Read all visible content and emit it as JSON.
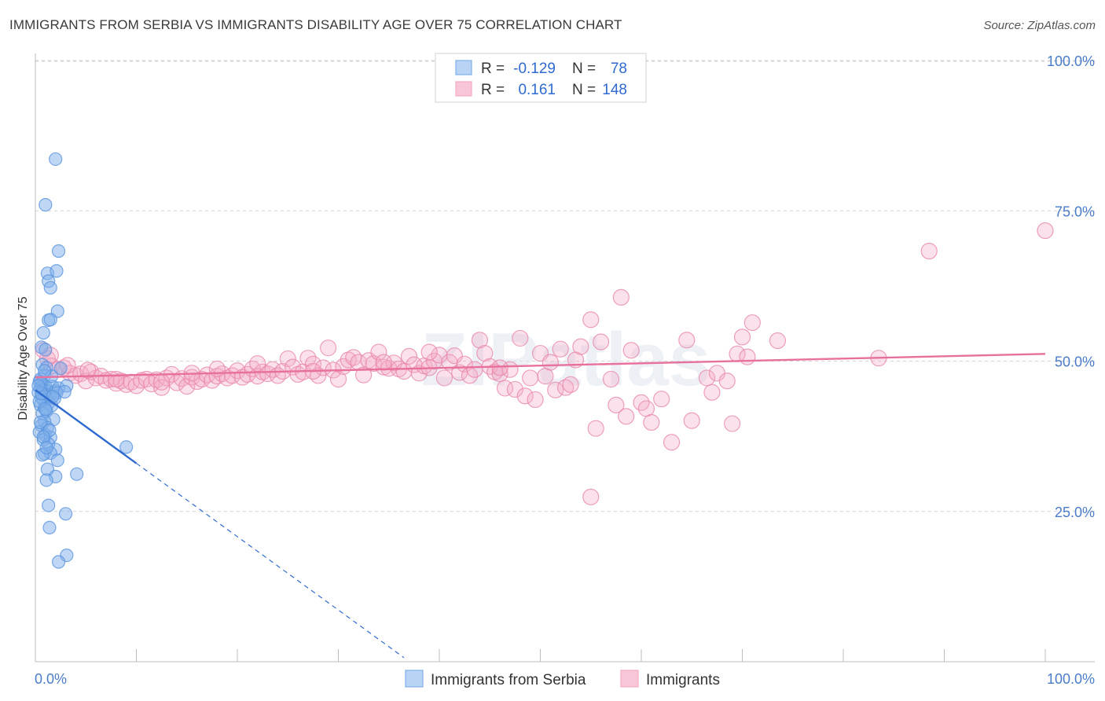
{
  "title": "IMMIGRANTS FROM SERBIA VS IMMIGRANTS DISABILITY AGE OVER 75 CORRELATION CHART",
  "source": "Source: ZipAtlas.com",
  "watermark": "ZIPatlas",
  "chart_data": {
    "type": "scatter",
    "title": "IMMIGRANTS FROM SERBIA VS IMMIGRANTS DISABILITY AGE OVER 75 CORRELATION CHART",
    "xlabel": "",
    "ylabel": "Disability Age Over 75",
    "xlim": [
      0,
      100
    ],
    "ylim": [
      0,
      105
    ],
    "x_tick_labels": [
      "0.0%",
      "100.0%"
    ],
    "y_ticks": [
      25,
      50,
      75,
      100
    ],
    "y_tick_labels": [
      "25.0%",
      "50.0%",
      "75.0%",
      "100.0%"
    ],
    "grid": true,
    "legend": {
      "position": "top-center",
      "r_label": "R =",
      "n_label": "N =",
      "entries": [
        {
          "r": "-0.129",
          "n": "78"
        },
        {
          "r": "0.161",
          "n": "148"
        }
      ]
    },
    "series": [
      {
        "name": "Immigrants from Serbia",
        "color": "#7fb0ea",
        "stroke": "#5a93de",
        "trend": {
          "x0": 0,
          "y0": 45.2,
          "x1": 10,
          "y1": 33.0,
          "dashed_to_x": 36.5
        },
        "trend_color": "#2f6ad0",
        "points": [
          [
            2.0,
            83.6
          ],
          [
            1.0,
            76.0
          ],
          [
            2.3,
            68.3
          ],
          [
            1.2,
            64.6
          ],
          [
            2.1,
            65.0
          ],
          [
            1.3,
            63.3
          ],
          [
            1.5,
            62.2
          ],
          [
            2.2,
            58.3
          ],
          [
            1.3,
            56.8
          ],
          [
            1.5,
            56.9
          ],
          [
            0.8,
            54.7
          ],
          [
            0.6,
            52.3
          ],
          [
            1.0,
            51.9
          ],
          [
            0.7,
            49.4
          ],
          [
            1.1,
            48.9
          ],
          [
            0.9,
            47.6
          ],
          [
            0.4,
            46.6
          ],
          [
            0.6,
            46.3
          ],
          [
            0.8,
            46.0
          ],
          [
            1.0,
            45.8
          ],
          [
            0.5,
            45.5
          ],
          [
            0.7,
            45.2
          ],
          [
            1.2,
            45.0
          ],
          [
            0.3,
            44.8
          ],
          [
            0.9,
            44.5
          ],
          [
            1.4,
            44.3
          ],
          [
            0.6,
            44.0
          ],
          [
            1.7,
            45.8
          ],
          [
            2.0,
            45.0
          ],
          [
            2.3,
            45.5
          ],
          [
            3.1,
            45.9
          ],
          [
            2.1,
            44.7
          ],
          [
            0.8,
            43.5
          ],
          [
            1.3,
            43.0
          ],
          [
            0.5,
            42.7
          ],
          [
            0.9,
            42.2
          ],
          [
            1.6,
            42.6
          ],
          [
            0.7,
            41.3
          ],
          [
            1.1,
            41.7
          ],
          [
            1.8,
            40.3
          ],
          [
            0.9,
            40.0
          ],
          [
            0.6,
            39.3
          ],
          [
            1.2,
            38.9
          ],
          [
            0.4,
            38.2
          ],
          [
            1.0,
            37.7
          ],
          [
            1.5,
            37.3
          ],
          [
            0.8,
            36.9
          ],
          [
            1.3,
            36.2
          ],
          [
            2.0,
            35.3
          ],
          [
            9.0,
            35.7
          ],
          [
            0.9,
            34.6
          ],
          [
            1.5,
            34.7
          ],
          [
            2.2,
            33.5
          ],
          [
            0.7,
            34.4
          ],
          [
            1.2,
            32.0
          ],
          [
            2.0,
            30.8
          ],
          [
            4.1,
            31.2
          ],
          [
            1.1,
            30.2
          ],
          [
            1.3,
            26.0
          ],
          [
            3.0,
            24.6
          ],
          [
            1.4,
            22.3
          ],
          [
            3.1,
            17.7
          ],
          [
            2.3,
            16.6
          ],
          [
            0.5,
            47.0
          ],
          [
            1.6,
            47.5
          ],
          [
            0.9,
            48.4
          ],
          [
            2.5,
            48.8
          ],
          [
            1.9,
            43.8
          ],
          [
            0.4,
            43.3
          ],
          [
            1.0,
            42.0
          ],
          [
            0.5,
            39.8
          ],
          [
            1.4,
            38.5
          ],
          [
            0.8,
            37.4
          ],
          [
            1.1,
            35.6
          ],
          [
            0.6,
            44.6
          ],
          [
            1.7,
            44.1
          ],
          [
            2.9,
            44.9
          ],
          [
            0.3,
            45.9
          ]
        ]
      },
      {
        "name": "Immigrants",
        "color": "#f4aac6",
        "stroke": "#e888ac",
        "trend": {
          "x0": 0,
          "y0": 47.3,
          "x1": 100,
          "y1": 51.2
        },
        "trend_color": "#e8709c",
        "points": [
          [
            0.8,
            51.8
          ],
          [
            1.2,
            50.4
          ],
          [
            1.6,
            49.2
          ],
          [
            2.2,
            48.6
          ],
          [
            2.8,
            48.9
          ],
          [
            3.4,
            48.0
          ],
          [
            4.0,
            47.6
          ],
          [
            4.5,
            47.9
          ],
          [
            5.0,
            46.7
          ],
          [
            5.5,
            48.2
          ],
          [
            6.0,
            47.2
          ],
          [
            6.5,
            47.5
          ],
          [
            7.0,
            46.8
          ],
          [
            7.5,
            47.0
          ],
          [
            8.0,
            46.3
          ],
          [
            8.5,
            46.7
          ],
          [
            9.0,
            46.1
          ],
          [
            9.5,
            46.5
          ],
          [
            10.0,
            45.9
          ],
          [
            10.5,
            46.8
          ],
          [
            11.0,
            47.0
          ],
          [
            11.5,
            46.2
          ],
          [
            12.0,
            46.9
          ],
          [
            12.5,
            45.6
          ],
          [
            13.0,
            47.2
          ],
          [
            13.5,
            47.8
          ],
          [
            14.0,
            46.4
          ],
          [
            14.5,
            47.1
          ],
          [
            15.0,
            45.8
          ],
          [
            15.5,
            47.3
          ],
          [
            16.0,
            46.6
          ],
          [
            16.5,
            47.0
          ],
          [
            17.0,
            47.7
          ],
          [
            17.5,
            46.8
          ],
          [
            18.0,
            47.5
          ],
          [
            18.5,
            47.9
          ],
          [
            19.0,
            47.2
          ],
          [
            19.5,
            47.6
          ],
          [
            20.0,
            48.4
          ],
          [
            20.5,
            47.3
          ],
          [
            21.0,
            47.8
          ],
          [
            21.5,
            48.7
          ],
          [
            22.0,
            47.5
          ],
          [
            22.5,
            48.2
          ],
          [
            23.0,
            47.9
          ],
          [
            23.5,
            48.6
          ],
          [
            24.0,
            47.6
          ],
          [
            24.5,
            48.3
          ],
          [
            25.0,
            50.4
          ],
          [
            25.5,
            49.0
          ],
          [
            26.0,
            47.8
          ],
          [
            26.5,
            48.2
          ],
          [
            27.0,
            50.5
          ],
          [
            27.5,
            49.5
          ],
          [
            28.0,
            47.6
          ],
          [
            28.5,
            48.9
          ],
          [
            29.0,
            52.2
          ],
          [
            29.5,
            48.5
          ],
          [
            30.0,
            47.0
          ],
          [
            30.5,
            49.1
          ],
          [
            31.0,
            50.2
          ],
          [
            31.5,
            50.6
          ],
          [
            32.0,
            49.8
          ],
          [
            32.5,
            47.7
          ],
          [
            33.0,
            50.1
          ],
          [
            33.5,
            49.6
          ],
          [
            34.0,
            51.5
          ],
          [
            34.5,
            49.0
          ],
          [
            35.0,
            48.8
          ],
          [
            35.5,
            49.7
          ],
          [
            36.0,
            48.7
          ],
          [
            36.5,
            48.3
          ],
          [
            37.0,
            50.8
          ],
          [
            37.5,
            49.4
          ],
          [
            38.0,
            48.0
          ],
          [
            38.5,
            49.2
          ],
          [
            39.0,
            48.9
          ],
          [
            39.5,
            50.0
          ],
          [
            40.0,
            51.0
          ],
          [
            40.5,
            47.2
          ],
          [
            41.0,
            49.8
          ],
          [
            41.5,
            50.9
          ],
          [
            42.0,
            48.1
          ],
          [
            42.5,
            49.5
          ],
          [
            43.0,
            47.6
          ],
          [
            43.5,
            48.6
          ],
          [
            44.0,
            53.5
          ],
          [
            44.5,
            51.3
          ],
          [
            45.0,
            49.1
          ],
          [
            45.5,
            48.2
          ],
          [
            46.0,
            47.9
          ],
          [
            46.5,
            45.5
          ],
          [
            47.0,
            48.6
          ],
          [
            47.5,
            45.3
          ],
          [
            48.0,
            53.8
          ],
          [
            48.5,
            44.2
          ],
          [
            49.0,
            47.2
          ],
          [
            49.5,
            43.6
          ],
          [
            50.0,
            51.3
          ],
          [
            50.5,
            47.5
          ],
          [
            51.0,
            49.8
          ],
          [
            51.5,
            45.2
          ],
          [
            52.0,
            52.0
          ],
          [
            52.5,
            45.6
          ],
          [
            53.0,
            46.1
          ],
          [
            53.5,
            50.2
          ],
          [
            54.0,
            52.4
          ],
          [
            55.0,
            56.9
          ],
          [
            55.5,
            38.8
          ],
          [
            56.0,
            53.2
          ],
          [
            57.0,
            47.0
          ],
          [
            57.5,
            42.7
          ],
          [
            58.0,
            60.6
          ],
          [
            58.5,
            40.8
          ],
          [
            59.0,
            51.8
          ],
          [
            60.0,
            43.1
          ],
          [
            60.5,
            42.1
          ],
          [
            61.0,
            39.8
          ],
          [
            62.0,
            43.7
          ],
          [
            63.0,
            36.5
          ],
          [
            64.5,
            53.5
          ],
          [
            65.0,
            40.1
          ],
          [
            66.5,
            47.2
          ],
          [
            67.0,
            44.8
          ],
          [
            67.5,
            48.0
          ],
          [
            68.5,
            46.7
          ],
          [
            69.0,
            39.6
          ],
          [
            69.5,
            51.2
          ],
          [
            70.0,
            54.0
          ],
          [
            70.5,
            50.7
          ],
          [
            71.0,
            56.4
          ],
          [
            73.5,
            53.4
          ],
          [
            83.5,
            50.5
          ],
          [
            88.5,
            68.3
          ],
          [
            100.0,
            71.7
          ],
          [
            55.0,
            27.4
          ],
          [
            46.0,
            48.9
          ],
          [
            39.0,
            51.5
          ],
          [
            34.5,
            49.8
          ],
          [
            27.5,
            48.3
          ],
          [
            22.0,
            49.6
          ],
          [
            18.0,
            48.7
          ],
          [
            15.5,
            48.0
          ],
          [
            12.5,
            46.5
          ],
          [
            8.0,
            47.0
          ],
          [
            5.2,
            48.5
          ],
          [
            3.2,
            49.3
          ],
          [
            1.5,
            51.0
          ]
        ]
      }
    ]
  },
  "bottom_legend": [
    "Immigrants from Serbia",
    "Immigrants"
  ]
}
